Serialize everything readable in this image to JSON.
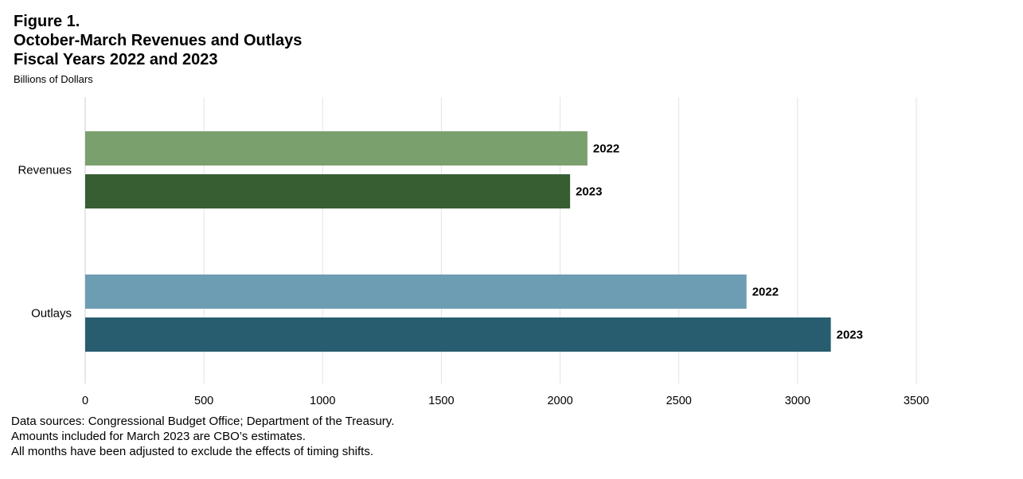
{
  "header": {
    "figure_label": "Figure 1.",
    "title_line1": "October-March Revenues and Outlays",
    "title_line2": "Fiscal Years 2022 and 2023",
    "units": "Billions of Dollars"
  },
  "chart_data": {
    "type": "bar",
    "orientation": "horizontal",
    "title": "October-March Revenues and Outlays Fiscal Years 2022 and 2023",
    "xlabel": "",
    "ylabel": "",
    "units": "Billions of Dollars",
    "xlim": [
      0,
      3500
    ],
    "xticks": [
      0,
      500,
      1000,
      1500,
      2000,
      2500,
      3000,
      3500
    ],
    "grid": "vertical",
    "legend": "none",
    "categories": [
      {
        "name": "Revenues",
        "bars": [
          {
            "label": "2022",
            "value": 2115,
            "color": "#7aa06e"
          },
          {
            "label": "2023",
            "value": 2042,
            "color": "#375e33"
          }
        ]
      },
      {
        "name": "Outlays",
        "bars": [
          {
            "label": "2022",
            "value": 2785,
            "color": "#6d9db3"
          },
          {
            "label": "2023",
            "value": 3140,
            "color": "#285d70"
          }
        ]
      }
    ]
  },
  "footer": {
    "line1": "Data sources: Congressional Budget Office; Department of the Treasury.",
    "line2": "Amounts included for March 2023 are CBO’s estimates.",
    "line3": "All months have been adjusted to exclude the effects of timing shifts."
  }
}
